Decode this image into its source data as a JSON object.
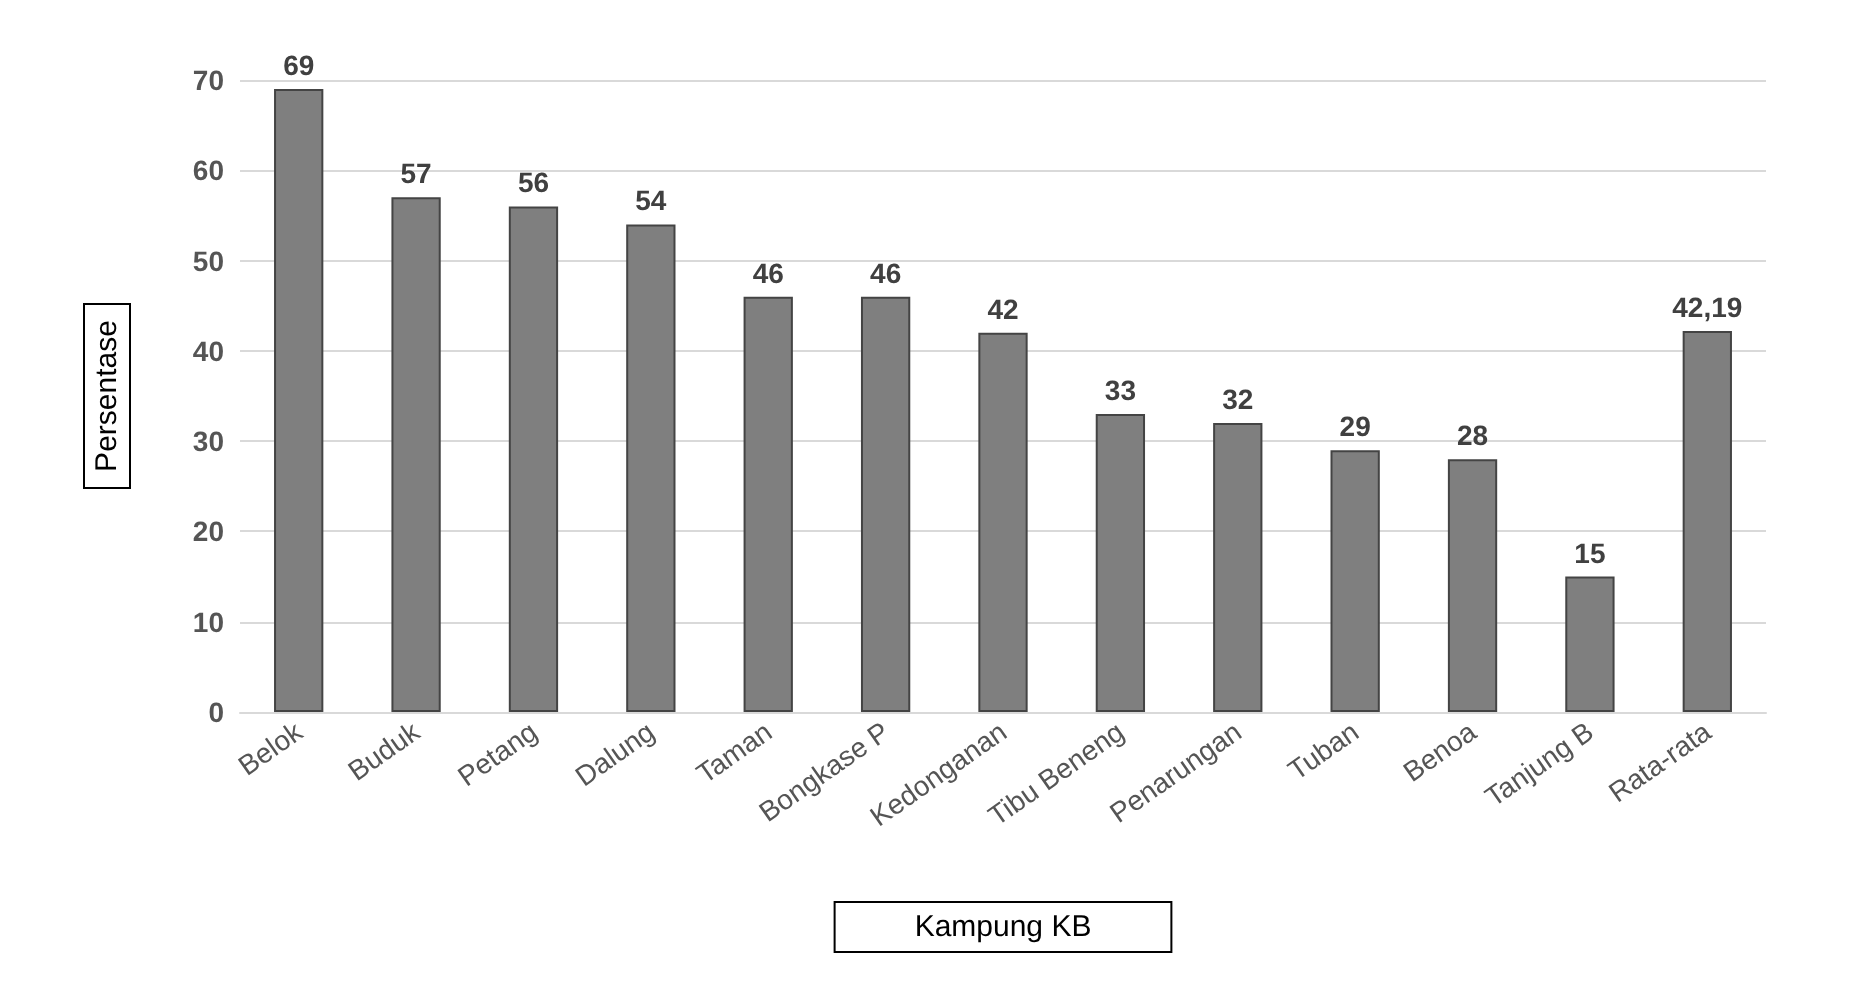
{
  "chart_data": {
    "type": "bar",
    "xlabel": "Kampung KB",
    "ylabel": "Persentase",
    "categories": [
      "Belok",
      "Buduk",
      "Petang",
      "Dalung",
      "Taman",
      "Bongkase P",
      "Kedonganan",
      "Tibu Beneng",
      "Penarungan",
      "Tuban",
      "Benoa",
      "Tanjung B",
      "Rata-rata"
    ],
    "values": [
      69,
      57,
      56,
      54,
      46,
      46,
      42,
      33,
      32,
      29,
      28,
      15,
      42.19
    ],
    "value_labels": [
      "69",
      "57",
      "56",
      "54",
      "46",
      "46",
      "42",
      "33",
      "32",
      "29",
      "28",
      "15",
      "42,19"
    ],
    "color": "#7f7f7f",
    "ylim": [
      0,
      70
    ],
    "yticks": [
      0,
      10,
      20,
      30,
      40,
      50,
      60,
      70
    ],
    "grid": "y"
  }
}
